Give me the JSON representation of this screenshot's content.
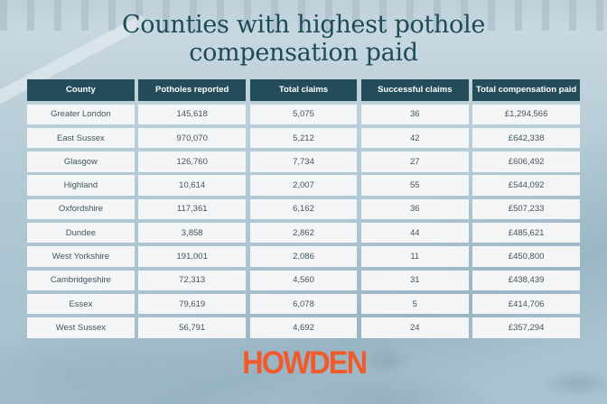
{
  "title": {
    "line1": "Counties with highest pothole",
    "line2": "compensation paid"
  },
  "table": {
    "headers": [
      "County",
      "Potholes reported",
      "Total claims",
      "Successful claims",
      "Total compensation paid"
    ],
    "rows": [
      [
        "Greater London",
        "145,618",
        "5,075",
        "36",
        "£1,294,566"
      ],
      [
        "East Sussex",
        "970,070",
        "5,212",
        "42",
        "£642,338"
      ],
      [
        "Glasgow",
        "126,760",
        "7,734",
        "27",
        "£606,492"
      ],
      [
        "Highland",
        "10,614",
        "2,007",
        "55",
        "£544,092"
      ],
      [
        "Oxfordshire",
        "117,361",
        "6,162",
        "36",
        "£507,233"
      ],
      [
        "Dundee",
        "3,858",
        "2,862",
        "44",
        "£485,621"
      ],
      [
        "West Yorkshire",
        "191,001",
        "2,086",
        "11",
        "£450,800"
      ],
      [
        "Cambridgeshire",
        "72,313",
        "4,560",
        "31",
        "£438,439"
      ],
      [
        "Essex",
        "79,619",
        "6,078",
        "5",
        "£414,706"
      ],
      [
        "West Sussex",
        "56,791",
        "4,692",
        "24",
        "£357,294"
      ]
    ]
  },
  "logo": {
    "text": "HOWDEN",
    "color": "#f15a2b"
  },
  "colors": {
    "header_bg": "#234d5b",
    "title": "#1d4a57",
    "cell_bg": "#f4f5f6",
    "cell_text": "#3f5661"
  }
}
